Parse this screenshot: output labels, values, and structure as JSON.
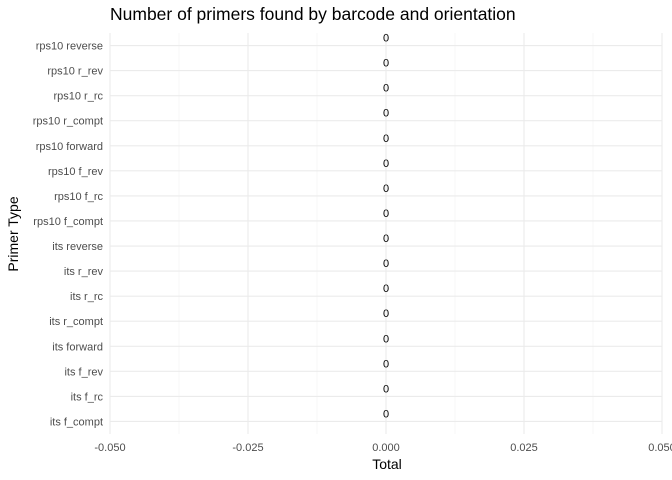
{
  "chart_data": {
    "type": "bar",
    "orientation": "horizontal",
    "title": "Number of primers found by barcode and orientation",
    "xlabel": "Total",
    "ylabel": "Primer Type",
    "xlim": [
      -0.05,
      0.05
    ],
    "x_ticks": [
      -0.05,
      -0.025,
      0.0,
      0.025,
      0.05
    ],
    "x_tick_labels": [
      "-0.050",
      "-0.025",
      "0.000",
      "0.025",
      "0.050"
    ],
    "grid": true,
    "categories": [
      "rps10 reverse",
      "rps10 r_rev",
      "rps10 r_rc",
      "rps10 r_compt",
      "rps10 forward",
      "rps10 f_rev",
      "rps10 f_rc",
      "rps10 f_compt",
      "its reverse",
      "its r_rev",
      "its r_rc",
      "its r_compt",
      "its forward",
      "its f_rev",
      "its f_rc",
      "its f_compt"
    ],
    "values": [
      0,
      0,
      0,
      0,
      0,
      0,
      0,
      0,
      0,
      0,
      0,
      0,
      0,
      0,
      0,
      0
    ],
    "data_labels": [
      "0",
      "0",
      "0",
      "0",
      "0",
      "0",
      "0",
      "0",
      "0",
      "0",
      "0",
      "0",
      "0",
      "0",
      "0",
      "0"
    ]
  }
}
